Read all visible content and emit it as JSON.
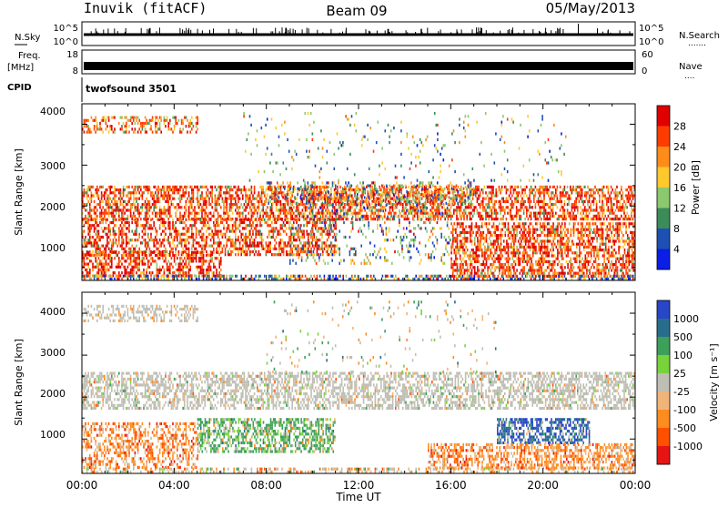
{
  "header": {
    "station": "Inuvik (fitACF)",
    "beam": "Beam 09",
    "date": "05/May/2013"
  },
  "left_labels": {
    "nsky": "N.Sky",
    "freq": "Freq.",
    "freq_unit": "[MHz]",
    "cpid": "CPID"
  },
  "right_labels": {
    "nsearch": "N.Search",
    "nsearch_dots": ".......",
    "nave": "Nave",
    "nave_dots": "...."
  },
  "cpid_name": "twofsound 3501",
  "chart_data": [
    {
      "type": "line",
      "name": "noise",
      "left_ticks": [
        "10^5",
        "10^0"
      ],
      "right_ticks": [
        "10^5",
        "10^0"
      ]
    },
    {
      "type": "line",
      "name": "freq-nave",
      "left_ticks": [
        "18",
        "8"
      ],
      "right_ticks": [
        "60",
        "0"
      ]
    },
    {
      "type": "heatmap",
      "name": "power",
      "ylabel": "Slant Range [km]",
      "yticks": [
        "4000",
        "3000",
        "2000",
        "1000"
      ],
      "ylim": [
        180,
        4500
      ],
      "xlim": [
        "00:00",
        "24:00"
      ],
      "colorbar": {
        "title": "Power [dB]",
        "labels": [
          "28",
          "24",
          "20",
          "16",
          "12",
          "8",
          "4"
        ],
        "colors": [
          "#e00000",
          "#ff3c00",
          "#ff8c1a",
          "#ffc82d",
          "#8cc86e",
          "#3c8c5a",
          "#1e50b4",
          "#0a1ee6"
        ]
      }
    },
    {
      "type": "heatmap",
      "name": "velocity",
      "ylabel": "Slant Range [km]",
      "yticks": [
        "4000",
        "3000",
        "2000",
        "1000"
      ],
      "ylim": [
        180,
        4500
      ],
      "xlim": [
        "00:00",
        "24:00"
      ],
      "colorbar": {
        "title": "Velocity [m s⁻¹]",
        "labels": [
          "1000",
          "500",
          "100",
          "25",
          "-25",
          "-100",
          "-500",
          "-1000"
        ],
        "colors": [
          "#2846c8",
          "#286e8c",
          "#3ca05a",
          "#78d23c",
          "#bebeb4",
          "#f0b478",
          "#ff8c1e",
          "#ff5000",
          "#e61414"
        ]
      }
    }
  ],
  "xaxis": {
    "ticks": [
      "00:00",
      "04:00",
      "08:00",
      "12:00",
      "16:00",
      "20:00",
      "00:00"
    ],
    "label": "Time UT"
  }
}
